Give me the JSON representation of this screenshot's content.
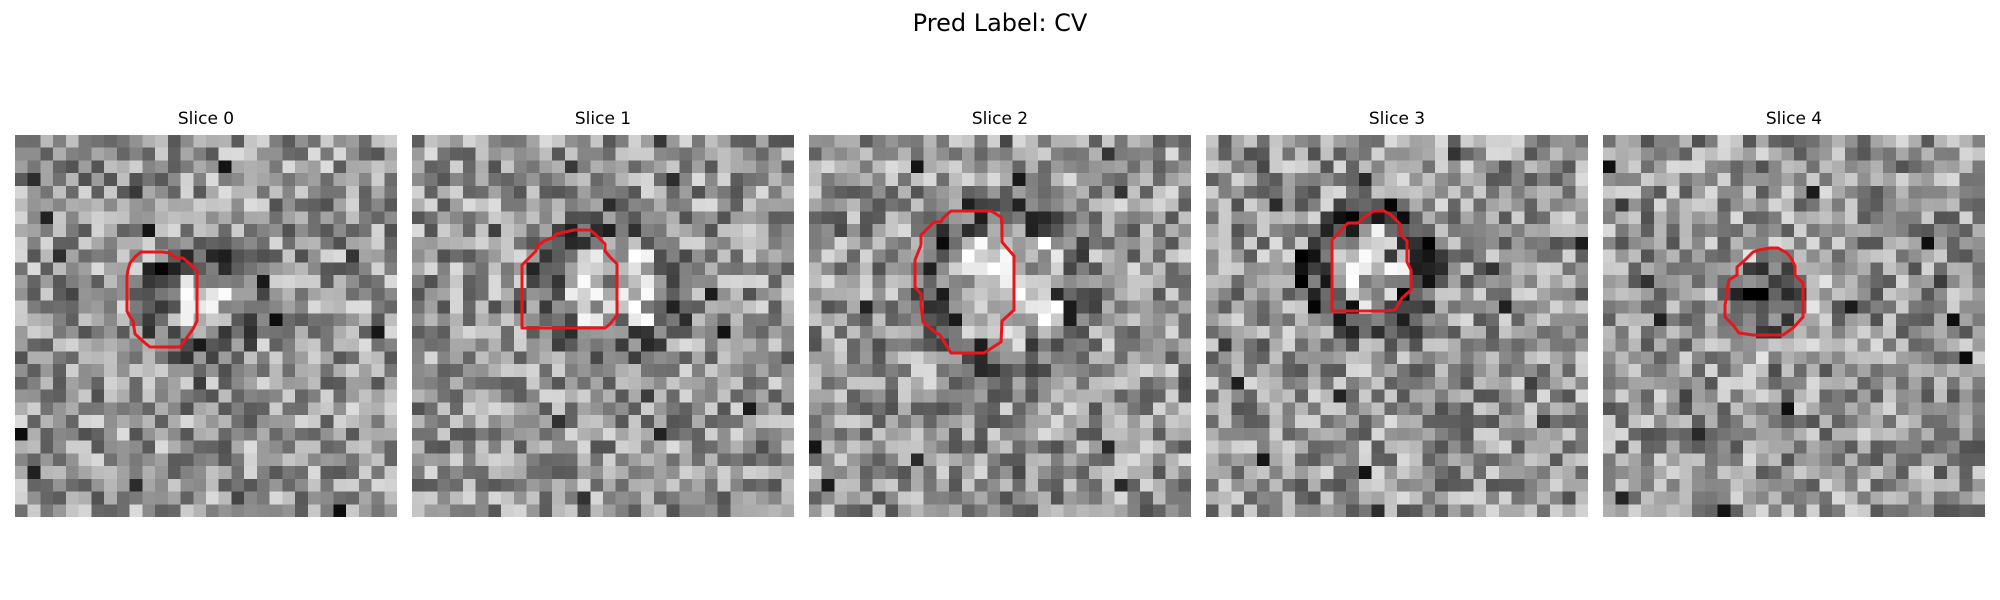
{
  "figure": {
    "title": "Pred Label: CV"
  },
  "slices": [
    {
      "title": "Slice 0",
      "blob": "bright-center"
    },
    {
      "title": "Slice 1",
      "blob": "bright"
    },
    {
      "title": "Slice 2",
      "blob": "bright-mottled"
    },
    {
      "title": "Slice 3",
      "blob": "bright-with-dark-ring"
    },
    {
      "title": "Slice 4",
      "blob": "dark"
    }
  ],
  "colors": {
    "contour": "#e8161c",
    "background": "#ffffff"
  }
}
